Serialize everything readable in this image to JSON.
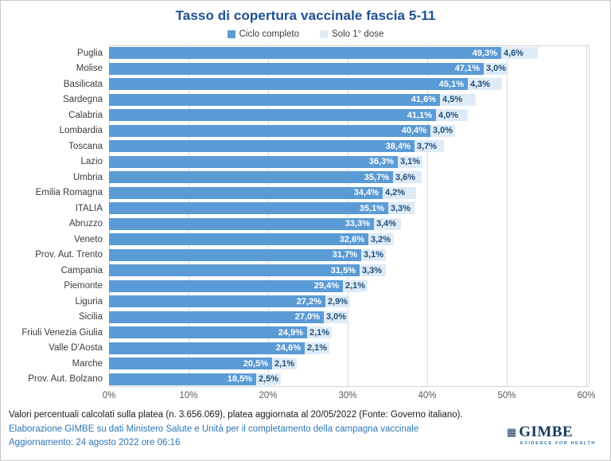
{
  "title": "Tasso di copertura vaccinale fascia 5-11",
  "chart_data": {
    "type": "bar",
    "orientation": "horizontal",
    "stacked": true,
    "title": "Tasso di copertura vaccinale fascia 5-11",
    "categories": [
      "Puglia",
      "Molise",
      "Basilicata",
      "Sardegna",
      "Calabria",
      "Lombardia",
      "Toscana",
      "Lazio",
      "Umbria",
      "Emilia Romagna",
      "ITALIA",
      "Abruzzo",
      "Veneto",
      "Prov. Aut. Trento",
      "Campania",
      "Piemonte",
      "Liguria",
      "Sicilia",
      "Friuli Venezia Giulia",
      "Valle D'Aosta",
      "Marche",
      "Prov. Aut. Bolzano"
    ],
    "series": [
      {
        "name": "Ciclo completo",
        "color": "#5B9BD5",
        "values": [
          49.3,
          47.1,
          45.1,
          41.6,
          41.1,
          40.4,
          38.4,
          36.3,
          35.7,
          34.4,
          35.1,
          33.3,
          32.6,
          31.7,
          31.5,
          29.4,
          27.2,
          27.0,
          24.9,
          24.6,
          20.5,
          18.5
        ],
        "labels": [
          "49,3%",
          "47,1%",
          "45,1%",
          "41,6%",
          "41,1%",
          "40,4%",
          "38,4%",
          "36,3%",
          "35,7%",
          "34,4%",
          "35,1%",
          "33,3%",
          "32,6%",
          "31,7%",
          "31,5%",
          "29,4%",
          "27,2%",
          "27,0%",
          "24,9%",
          "24,6%",
          "20,5%",
          "18,5%"
        ]
      },
      {
        "name": "Solo 1° dose",
        "color": "#DEEBF7",
        "values": [
          4.6,
          3.0,
          4.3,
          4.5,
          4.0,
          3.0,
          3.7,
          3.1,
          3.6,
          4.2,
          3.3,
          3.4,
          3.2,
          3.1,
          3.3,
          2.1,
          2.9,
          3.0,
          2.1,
          2.1,
          2.1,
          2.5
        ],
        "labels": [
          "4,6%",
          "3,0%",
          "4,3%",
          "4,5%",
          "4,0%",
          "3,0%",
          "3,7%",
          "3,1%",
          "3,6%",
          "4,2%",
          "3,3%",
          "3,4%",
          "3,2%",
          "3,1%",
          "3,3%",
          "2,1%",
          "2,9%",
          "3,0%",
          "2,1%",
          "2,1%",
          "2,1%",
          "2,5%"
        ]
      }
    ],
    "xlim": [
      0,
      60
    ],
    "x_ticks": [
      "0%",
      "10%",
      "20%",
      "30%",
      "40%",
      "50%",
      "60%"
    ],
    "grid": true,
    "legend_position": "top"
  },
  "footer": {
    "note": "Valori percentuali calcolati sulla platea (n. 3.656.069), platea aggiornata al 20/05/2022 (Fonte: Governo italiano).",
    "source": "Elaborazione GIMBE su dati Ministero Salute e Unità per il completamento della campagna vaccinale",
    "update": "Aggiornamento: 24 agosto 2022 ore 06:16"
  },
  "logo": {
    "wordmark": "GIMBE",
    "tagline": "EVIDENCE FOR HEALTH",
    "icon": "checkered-grid"
  },
  "colors": {
    "title_blue": "#1F5094",
    "bar_complete": "#5B9BD5",
    "bar_first_dose": "#DEEBF7",
    "light_label_blue": "#1F4E79",
    "footer_blue": "#2E74B5",
    "axis_gray": "#595959",
    "gridline_gray": "#D9D9D9",
    "logo_navy": "#17375E"
  }
}
